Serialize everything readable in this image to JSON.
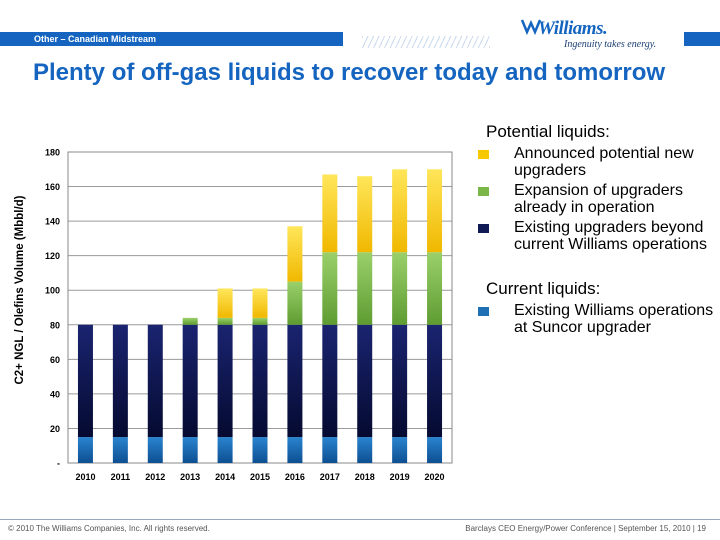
{
  "header": {
    "section": "Other – Canadian Midstream",
    "logo_text": "Williams.",
    "tagline": "Ingenuity takes energy."
  },
  "title": "Plenty of off-gas liquids to recover today and tomorrow",
  "legend": {
    "potential_heading": "Potential liquids:",
    "current_heading": "Current liquids:",
    "items": {
      "announced": "Announced potential new upgraders",
      "expansion": "Expansion of upgraders already in operation",
      "existing_beyond": "Existing upgraders beyond current Williams operations",
      "suncor": "Existing Williams operations at Suncor upgrader"
    }
  },
  "colors": {
    "announced": "#f5c800",
    "expansion": "#7ab648",
    "existing_beyond": "#101a55",
    "suncor": "#1f6fb5"
  },
  "chart_data": {
    "type": "bar",
    "stacked": true,
    "categories": [
      "2010",
      "2011",
      "2012",
      "2013",
      "2014",
      "2015",
      "2016",
      "2017",
      "2018",
      "2019",
      "2020"
    ],
    "series": [
      {
        "name": "Existing Williams operations at Suncor upgrader",
        "key": "suncor",
        "values": [
          15,
          15,
          15,
          15,
          15,
          15,
          15,
          15,
          15,
          15,
          15
        ]
      },
      {
        "name": "Existing upgraders beyond current Williams operations",
        "key": "existing_beyond",
        "values": [
          65,
          65,
          65,
          65,
          65,
          65,
          65,
          65,
          65,
          65,
          65
        ]
      },
      {
        "name": "Expansion of upgraders already in operation",
        "key": "expansion",
        "values": [
          0,
          0,
          0,
          4,
          4,
          4,
          25,
          42,
          42,
          42,
          42
        ]
      },
      {
        "name": "Announced potential new upgraders",
        "key": "announced",
        "values": [
          0,
          0,
          0,
          0,
          17,
          17,
          32,
          45,
          44,
          48,
          48
        ]
      }
    ],
    "ylabel": "C2+ NGL / Olefins Volume (Mbbl/d)",
    "xlabel": "",
    "ylim": [
      0,
      180
    ],
    "yticks": [
      0,
      20,
      40,
      60,
      80,
      100,
      120,
      140,
      160,
      180
    ],
    "ytick_labels": [
      "-",
      "20",
      "40",
      "60",
      "80",
      "100",
      "120",
      "140",
      "160",
      "180"
    ],
    "grid": true
  },
  "footer": {
    "copyright": "© 2010 The Williams Companies, Inc. All rights reserved.",
    "event": "Barclays CEO Energy/Power Conference | September 15, 2010 | 19"
  }
}
